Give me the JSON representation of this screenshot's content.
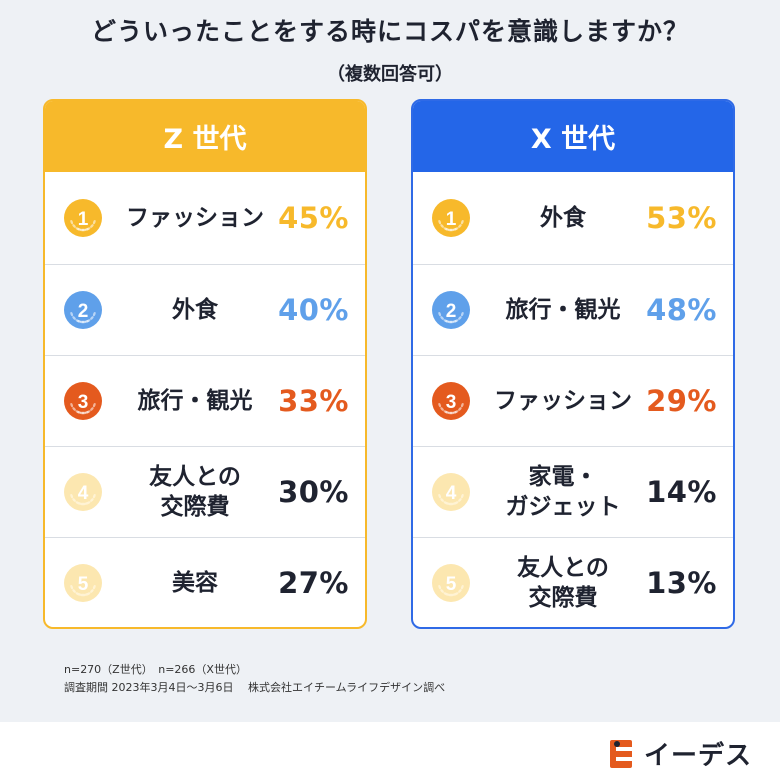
{
  "title": "どういったことをする時にコスパを意識しますか？",
  "subtitle": "（複数回答可）",
  "colors": {
    "gold": "#f7b92b",
    "silver": "#5fa0ea",
    "bronze": "#e45a1e",
    "pale": "#fce7b0",
    "z_accent": "#f7b92b",
    "x_accent": "#2466e8"
  },
  "chart_data": [
    {
      "type": "table",
      "title": "Z 世代",
      "rows": [
        {
          "rank": "1",
          "label": "ファッション",
          "value": 45,
          "display": "45%",
          "tier": "gold"
        },
        {
          "rank": "2",
          "label": "外食",
          "value": 40,
          "display": "40%",
          "tier": "silver"
        },
        {
          "rank": "3",
          "label": "旅行・観光",
          "value": 33,
          "display": "33%",
          "tier": "bronze"
        },
        {
          "rank": "4",
          "label": "友人との\n交際費",
          "value": 30,
          "display": "30%",
          "tier": "pale"
        },
        {
          "rank": "5",
          "label": "美容",
          "value": 27,
          "display": "27%",
          "tier": "pale"
        }
      ]
    },
    {
      "type": "table",
      "title": "X 世代",
      "rows": [
        {
          "rank": "1",
          "label": "外食",
          "value": 53,
          "display": "53%",
          "tier": "gold"
        },
        {
          "rank": "2",
          "label": "旅行・観光",
          "value": 48,
          "display": "48%",
          "tier": "silver"
        },
        {
          "rank": "3",
          "label": "ファッション",
          "value": 29,
          "display": "29%",
          "tier": "bronze"
        },
        {
          "rank": "4",
          "label": "家電・\nガジェット",
          "value": 14,
          "display": "14%",
          "tier": "pale"
        },
        {
          "rank": "5",
          "label": "友人との\n交際費",
          "value": 13,
          "display": "13%",
          "tier": "pale"
        }
      ]
    }
  ],
  "footnotes": {
    "sample": "n=270（Z世代）　n=266（X世代）",
    "period": "調査期間  2023年3月4日～3月6日　 株式会社エイチームライフデザイン調べ"
  },
  "logo": {
    "text": "イーデス",
    "icon": "ie-des-logo-icon"
  }
}
